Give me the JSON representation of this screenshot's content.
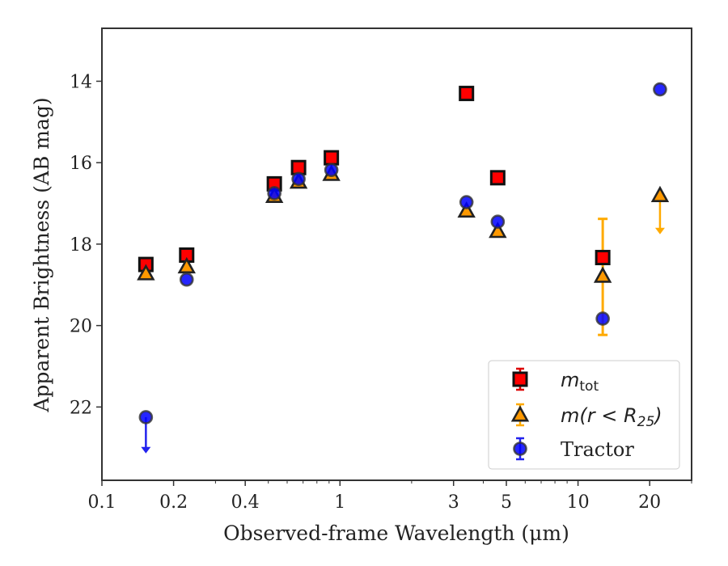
{
  "chart_data": {
    "type": "scatter",
    "xlabel": "Observed-frame Wavelength (μm)",
    "ylabel": "Apparent Brightness (AB mag)",
    "xscale": "log",
    "xlim": [
      0.1,
      30
    ],
    "ylim": [
      23.8,
      12.7
    ],
    "y_inverted": true,
    "grid": false,
    "legend_position": "lower-right",
    "x_ticks": [
      {
        "value": 0.1,
        "label": "0.1"
      },
      {
        "value": 0.2,
        "label": "0.2"
      },
      {
        "value": 0.4,
        "label": "0.4"
      },
      {
        "value": 1,
        "label": "1"
      },
      {
        "value": 3,
        "label": "3"
      },
      {
        "value": 5,
        "label": "5"
      },
      {
        "value": 10,
        "label": "10"
      },
      {
        "value": 20,
        "label": "20"
      }
    ],
    "y_ticks": [
      {
        "value": 14,
        "label": "14"
      },
      {
        "value": 16,
        "label": "16"
      },
      {
        "value": 18,
        "label": "18"
      },
      {
        "value": 20,
        "label": "20"
      },
      {
        "value": 22,
        "label": "22"
      }
    ],
    "series": [
      {
        "name": "m_tot",
        "legend_main": "m",
        "legend_sub": "tot",
        "marker": "square",
        "color": "#ff0000",
        "edge_color": "#111111",
        "error_color": "#dd0000",
        "points": [
          {
            "x": 0.153,
            "y": 18.5
          },
          {
            "x": 0.227,
            "y": 18.27
          },
          {
            "x": 0.53,
            "y": 16.52
          },
          {
            "x": 0.67,
            "y": 16.12
          },
          {
            "x": 0.92,
            "y": 15.88
          },
          {
            "x": 3.4,
            "y": 14.3
          },
          {
            "x": 4.6,
            "y": 16.37
          },
          {
            "x": 12.7,
            "y": 18.33,
            "yerr_low": 17.38,
            "yerr_high": 20.23
          }
        ]
      },
      {
        "name": "m(r < R25)",
        "legend_main": "m(r < R",
        "legend_sub": "25",
        "legend_end": ")",
        "marker": "triangle",
        "color": "#ff9900",
        "edge_color": "#222222",
        "error_color": "#ffaa00",
        "points": [
          {
            "x": 0.153,
            "y": 18.72
          },
          {
            "x": 0.227,
            "y": 18.55
          },
          {
            "x": 0.53,
            "y": 16.82
          },
          {
            "x": 0.67,
            "y": 16.47
          },
          {
            "x": 0.92,
            "y": 16.28
          },
          {
            "x": 3.4,
            "y": 17.18
          },
          {
            "x": 4.6,
            "y": 17.68
          },
          {
            "x": 12.7,
            "y": 18.78
          },
          {
            "x": 22.1,
            "y": 16.8,
            "upper_limit_to": 17.72
          }
        ]
      },
      {
        "name": "Tractor",
        "marker": "circle",
        "color": "#0000ff",
        "edge_color": "#333333",
        "error_color": "#2222ee",
        "points": [
          {
            "x": 0.153,
            "y": 22.25,
            "upper_limit_to": 23.1
          },
          {
            "x": 0.227,
            "y": 18.87
          },
          {
            "x": 0.53,
            "y": 16.75
          },
          {
            "x": 0.67,
            "y": 16.4
          },
          {
            "x": 0.92,
            "y": 16.18
          },
          {
            "x": 3.4,
            "y": 16.97
          },
          {
            "x": 4.6,
            "y": 17.45
          },
          {
            "x": 12.7,
            "y": 19.83
          },
          {
            "x": 22.1,
            "y": 14.2
          }
        ]
      }
    ]
  }
}
